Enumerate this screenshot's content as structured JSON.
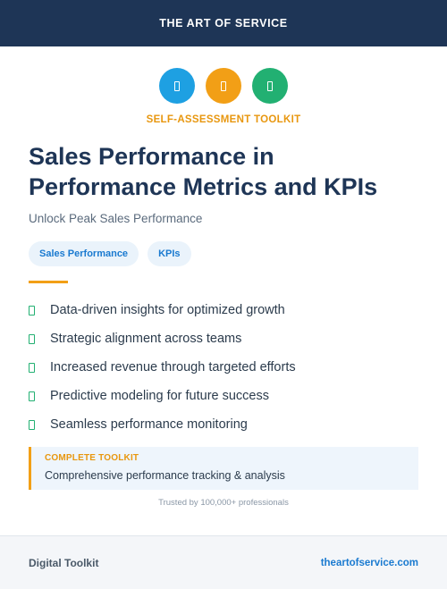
{
  "header": {
    "brand": "THE ART OF SERVICE"
  },
  "icons": [
    {
      "name": "blue-icon",
      "color": "#1ea0e2"
    },
    {
      "name": "orange-icon",
      "color": "#f29f16"
    },
    {
      "name": "green-icon",
      "color": "#22b072"
    }
  ],
  "eyebrow": "SELF-ASSESSMENT TOOLKIT",
  "title": "Sales Performance in Performance Metrics and KPIs",
  "subtitle": "Unlock Peak Sales Performance",
  "tags": [
    "Sales Performance",
    "KPIs"
  ],
  "features": [
    "Data-driven insights for optimized growth",
    "Strategic alignment across teams",
    "Increased revenue through targeted efforts",
    "Predictive modeling for future success",
    "Seamless performance monitoring"
  ],
  "callout": {
    "label": "COMPLETE TOOLKIT",
    "text": "Comprehensive performance tracking & analysis"
  },
  "trusted": "Trusted by 100,000+ professionals",
  "footer": {
    "left": "Digital Toolkit",
    "right": "theartofservice.com"
  },
  "colors": {
    "navy": "#1e3556",
    "accent_orange": "#f29f16",
    "link_blue": "#1a7ad0",
    "check_green": "#22b072"
  }
}
